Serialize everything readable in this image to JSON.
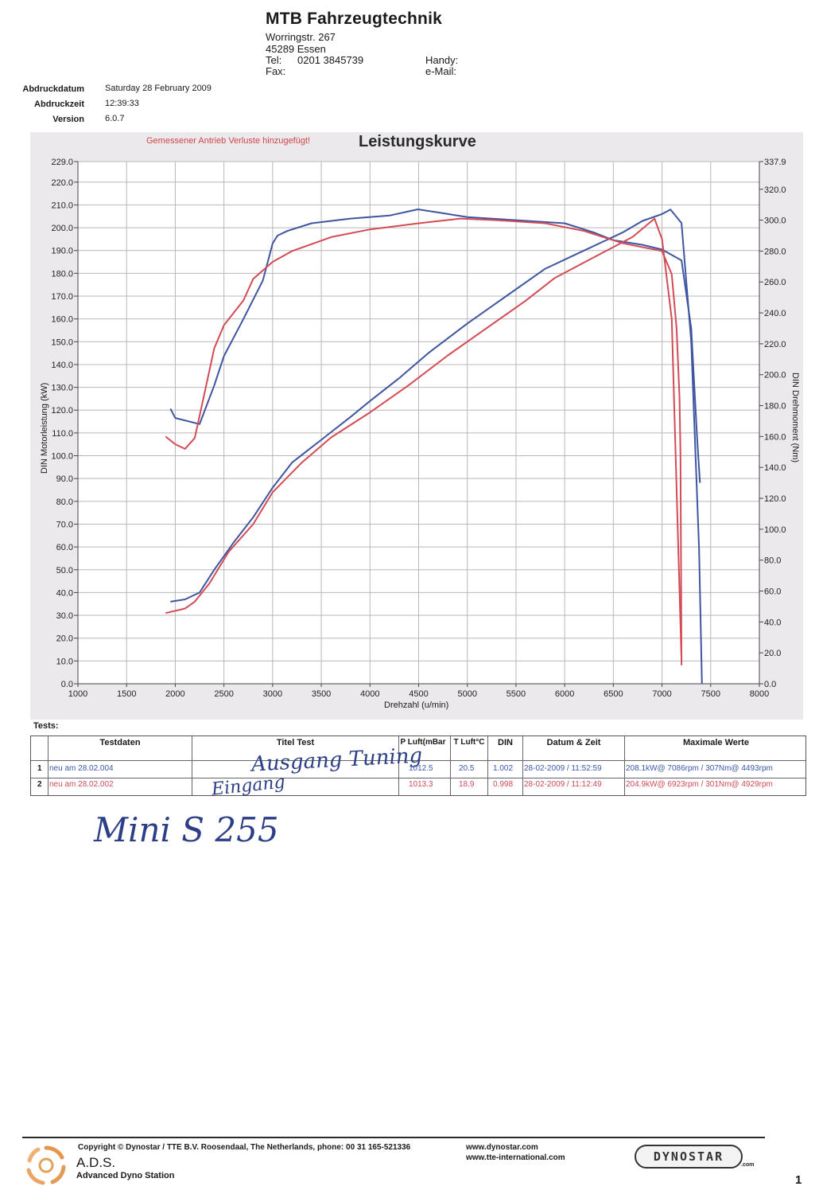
{
  "header": {
    "company": "MTB Fahrzeugtechnik",
    "street": "Worringstr. 267",
    "city": "45289 Essen",
    "tel_label": "Tel:",
    "tel": "0201 3845739",
    "fax_label": "Fax:",
    "handy_label": "Handy:",
    "email_label": "e-Mail:"
  },
  "meta": {
    "date_label": "Abdruckdatum",
    "date": "Saturday 28 February 2009",
    "time_label": "Abdruckzeit",
    "time": "12:39:33",
    "version_label": "Version",
    "version": "6.0.7"
  },
  "chart_data": {
    "type": "line",
    "title": "Leistungskurve",
    "note": "Gemessener Antrieb Verluste hinzugefügt!",
    "xlabel": "Drehzahl (u/min)",
    "ylabel_left": "DIN Motorleistung (kW)",
    "ylabel_right": "DIN Drehmoment (Nm)",
    "xlim": [
      1000,
      8000
    ],
    "ylim_left": [
      0,
      229
    ],
    "ylim_right": [
      0,
      337.9
    ],
    "grid": true,
    "x_ticks": [
      "1000",
      "1500",
      "2000",
      "2500",
      "3000",
      "3500",
      "4000",
      "4500",
      "5000",
      "5500",
      "6000",
      "6500",
      "7000",
      "7500",
      "8000"
    ],
    "y_ticks_left": [
      "0.0",
      "10.0",
      "20.0",
      "30.0",
      "40.0",
      "50.0",
      "60.0",
      "70.0",
      "80.0",
      "90.0",
      "100.0",
      "110.0",
      "120.0",
      "130.0",
      "140.0",
      "150.0",
      "160.0",
      "170.0",
      "180.0",
      "190.0",
      "200.0",
      "210.0",
      "220.0",
      "229.0"
    ],
    "y_ticks_right": [
      "0.0",
      "20.0",
      "40.0",
      "60.0",
      "80.0",
      "100.0",
      "120.0",
      "140.0",
      "160.0",
      "180.0",
      "200.0",
      "220.0",
      "240.0",
      "260.0",
      "280.0",
      "300.0",
      "320.0",
      "337.9"
    ],
    "series": [
      {
        "run": 1,
        "axis": "left",
        "color": "#3f55a0",
        "points": [
          [
            1950,
            36
          ],
          [
            2100,
            37
          ],
          [
            2250,
            40
          ],
          [
            2400,
            50
          ],
          [
            2600,
            62
          ],
          [
            2800,
            73
          ],
          [
            3000,
            86
          ],
          [
            3200,
            97
          ],
          [
            3500,
            107
          ],
          [
            3800,
            117
          ],
          [
            4000,
            124
          ],
          [
            4300,
            134
          ],
          [
            4600,
            145
          ],
          [
            5000,
            158
          ],
          [
            5400,
            170
          ],
          [
            5800,
            182
          ],
          [
            6200,
            190
          ],
          [
            6600,
            198
          ],
          [
            6800,
            203
          ],
          [
            7000,
            206
          ],
          [
            7087,
            208
          ],
          [
            7200,
            202
          ],
          [
            7300,
            150
          ],
          [
            7380,
            60
          ],
          [
            7410,
            0
          ]
        ]
      },
      {
        "run": 1,
        "axis": "right",
        "color": "#3f55a0",
        "points": [
          [
            1950,
            178
          ],
          [
            2000,
            172
          ],
          [
            2250,
            168
          ],
          [
            2400,
            193
          ],
          [
            2500,
            212
          ],
          [
            2700,
            236
          ],
          [
            2900,
            261
          ],
          [
            3000,
            285
          ],
          [
            3050,
            290
          ],
          [
            3150,
            293
          ],
          [
            3400,
            298
          ],
          [
            3800,
            301
          ],
          [
            4200,
            303
          ],
          [
            4493,
            307
          ],
          [
            4700,
            305
          ],
          [
            5000,
            302
          ],
          [
            5500,
            300
          ],
          [
            6000,
            298
          ],
          [
            6300,
            292
          ],
          [
            6500,
            287
          ],
          [
            6800,
            284
          ],
          [
            7000,
            281
          ],
          [
            7200,
            274
          ],
          [
            7300,
            230
          ],
          [
            7360,
            160
          ],
          [
            7390,
            130
          ]
        ]
      },
      {
        "run": 2,
        "axis": "left",
        "color": "#d24b55",
        "points": [
          [
            1900,
            31
          ],
          [
            2100,
            33
          ],
          [
            2200,
            36
          ],
          [
            2350,
            44
          ],
          [
            2550,
            58
          ],
          [
            2800,
            70
          ],
          [
            3000,
            84
          ],
          [
            3300,
            97
          ],
          [
            3600,
            108
          ],
          [
            4000,
            119
          ],
          [
            4400,
            131
          ],
          [
            4800,
            144
          ],
          [
            5200,
            156
          ],
          [
            5600,
            168
          ],
          [
            5900,
            178
          ],
          [
            6300,
            187
          ],
          [
            6700,
            196
          ],
          [
            6923,
            204
          ],
          [
            7000,
            195
          ],
          [
            7100,
            160
          ],
          [
            7200,
            10
          ]
        ]
      },
      {
        "run": 2,
        "axis": "right",
        "color": "#d24b55",
        "points": [
          [
            1900,
            160
          ],
          [
            2000,
            155
          ],
          [
            2100,
            152
          ],
          [
            2200,
            159
          ],
          [
            2300,
            188
          ],
          [
            2400,
            217
          ],
          [
            2500,
            232
          ],
          [
            2700,
            248
          ],
          [
            2800,
            262
          ],
          [
            3000,
            273
          ],
          [
            3200,
            280
          ],
          [
            3600,
            289
          ],
          [
            4000,
            294
          ],
          [
            4500,
            298
          ],
          [
            4929,
            301
          ],
          [
            5300,
            300
          ],
          [
            5800,
            298
          ],
          [
            6200,
            293
          ],
          [
            6600,
            285
          ],
          [
            7000,
            280
          ],
          [
            7100,
            265
          ],
          [
            7150,
            230
          ],
          [
            7180,
            185
          ],
          [
            7190,
            148
          ],
          [
            7200,
            12
          ]
        ]
      }
    ]
  },
  "tests": {
    "label": "Tests:",
    "headers": [
      "Testdaten",
      "Titel Test",
      "P Luft(mBar",
      "T Luft°C",
      "DIN",
      "Datum & Zeit",
      "Maximale Werte"
    ],
    "rows": [
      {
        "no": "1",
        "name": "neu am 28.02.004",
        "p": "1012.5",
        "t": "20.5",
        "din": "1.002",
        "datetime": "28-02-2009 / 11:52:59",
        "max": "208.1kW@ 7086rpm / 307Nm@ 4493rpm",
        "color": "#3b5aa6"
      },
      {
        "no": "2",
        "name": "neu am 28.02.002",
        "p": "1013.3",
        "t": "18.9",
        "din": "0.998",
        "datetime": "28-02-2009 / 11:12:49",
        "max": "204.9kW@ 6923rpm / 301Nm@ 4929rpm",
        "color": "#d04a5a"
      }
    ]
  },
  "handwriting": {
    "row1": "Ausgang Tuning",
    "row2": "Eingang",
    "note": "Mini S 255"
  },
  "footer": {
    "copyright": "Copyright ©  Dynostar / TTE B.V. Roosendaal, The Netherlands, phone: 00 31 165-521336",
    "web1": "www.dynostar.com",
    "web2": "www.tte-international.com",
    "ads": "A.D.S.",
    "ads_sub": "Advanced Dyno Station",
    "brand": "DYNOSTAR",
    "brand_suffix": ".com",
    "page": "1"
  }
}
